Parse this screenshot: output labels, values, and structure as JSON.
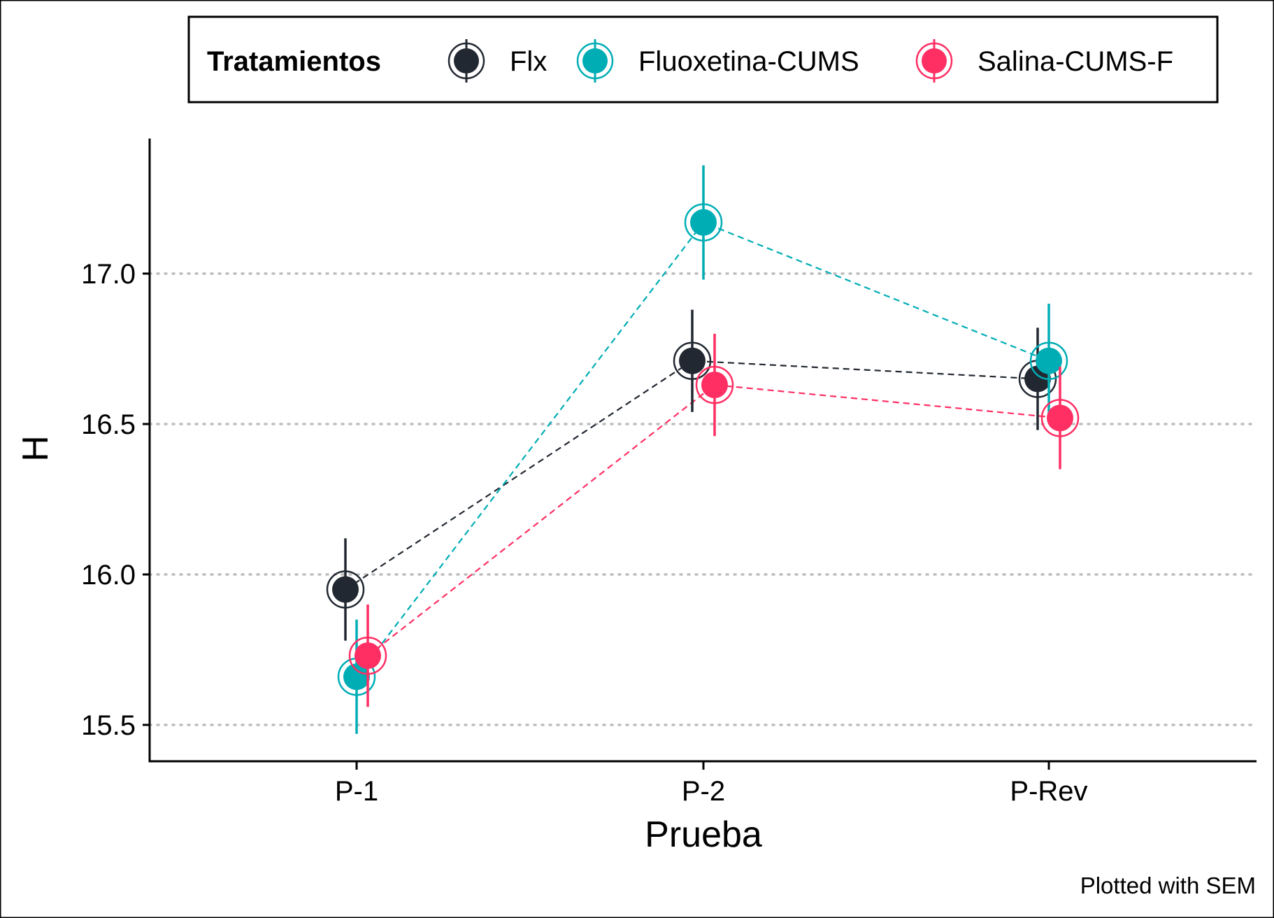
{
  "legend": {
    "title": "Tratamientos",
    "items": [
      "Flx",
      "Fluoxetina-CUMS",
      "Salina-CUMS-F"
    ]
  },
  "caption": "Plotted with SEM",
  "colors": {
    "Flx": "#222831",
    "Fluoxetina-CUMS": "#00ADB5",
    "Salina-CUMS-F": "#FF2E63",
    "grid": "#bdbdbd",
    "axis": "#000000"
  },
  "chart_data": {
    "type": "line",
    "xlabel": "Prueba",
    "ylabel": "H",
    "categories": [
      "P-1",
      "P-2",
      "P-Rev"
    ],
    "ylim": [
      15.38,
      17.46
    ],
    "yticks": [
      15.5,
      16.0,
      16.5,
      17.0
    ],
    "ytick_labels": [
      "15.5",
      "16.0",
      "16.5",
      "17.0"
    ],
    "grid": "horizontal dotted at major ticks",
    "legend_position": "top",
    "error_bars": "SEM",
    "series": [
      {
        "name": "Flx",
        "values": [
          15.95,
          16.71,
          16.65
        ],
        "sem": [
          0.17,
          0.17,
          0.17
        ]
      },
      {
        "name": "Fluoxetina-CUMS",
        "values": [
          15.66,
          17.17,
          16.71
        ],
        "sem": [
          0.19,
          0.19,
          0.19
        ]
      },
      {
        "name": "Salina-CUMS-F",
        "values": [
          15.73,
          16.63,
          16.52
        ],
        "sem": [
          0.17,
          0.17,
          0.17
        ]
      }
    ]
  }
}
